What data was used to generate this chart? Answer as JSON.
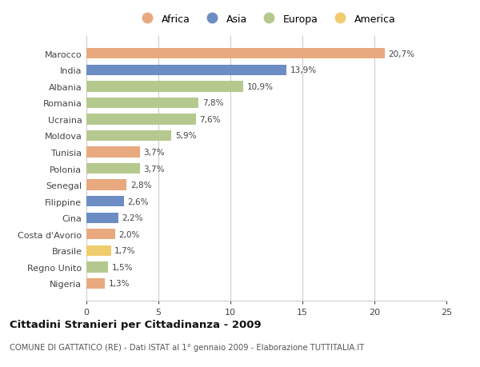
{
  "countries": [
    "Marocco",
    "India",
    "Albania",
    "Romania",
    "Ucraina",
    "Moldova",
    "Tunisia",
    "Polonia",
    "Senegal",
    "Filippine",
    "Cina",
    "Costa d'Avorio",
    "Brasile",
    "Regno Unito",
    "Nigeria"
  ],
  "values": [
    20.7,
    13.9,
    10.9,
    7.8,
    7.6,
    5.9,
    3.7,
    3.7,
    2.8,
    2.6,
    2.2,
    2.0,
    1.7,
    1.5,
    1.3
  ],
  "labels": [
    "20,7%",
    "13,9%",
    "10,9%",
    "7,8%",
    "7,6%",
    "5,9%",
    "3,7%",
    "3,7%",
    "2,8%",
    "2,6%",
    "2,2%",
    "2,0%",
    "1,7%",
    "1,5%",
    "1,3%"
  ],
  "regions": [
    "Africa",
    "Asia",
    "Europa",
    "Europa",
    "Europa",
    "Europa",
    "Africa",
    "Europa",
    "Africa",
    "Asia",
    "Asia",
    "Africa",
    "America",
    "Europa",
    "Africa"
  ],
  "colors": {
    "Africa": "#E8A97E",
    "Asia": "#6B8DC4",
    "Europa": "#B5C98E",
    "America": "#F0CC6E"
  },
  "xlim": [
    0,
    25
  ],
  "xticks": [
    0,
    5,
    10,
    15,
    20,
    25
  ],
  "title": "Cittadini Stranieri per Cittadinanza - 2009",
  "subtitle": "COMUNE DI GATTATICO (RE) - Dati ISTAT al 1° gennaio 2009 - Elaborazione TUTTITALIA.IT",
  "background_color": "#ffffff",
  "bar_height": 0.65,
  "grid_color": "#cccccc",
  "legend_order": [
    "Africa",
    "Asia",
    "Europa",
    "America"
  ]
}
